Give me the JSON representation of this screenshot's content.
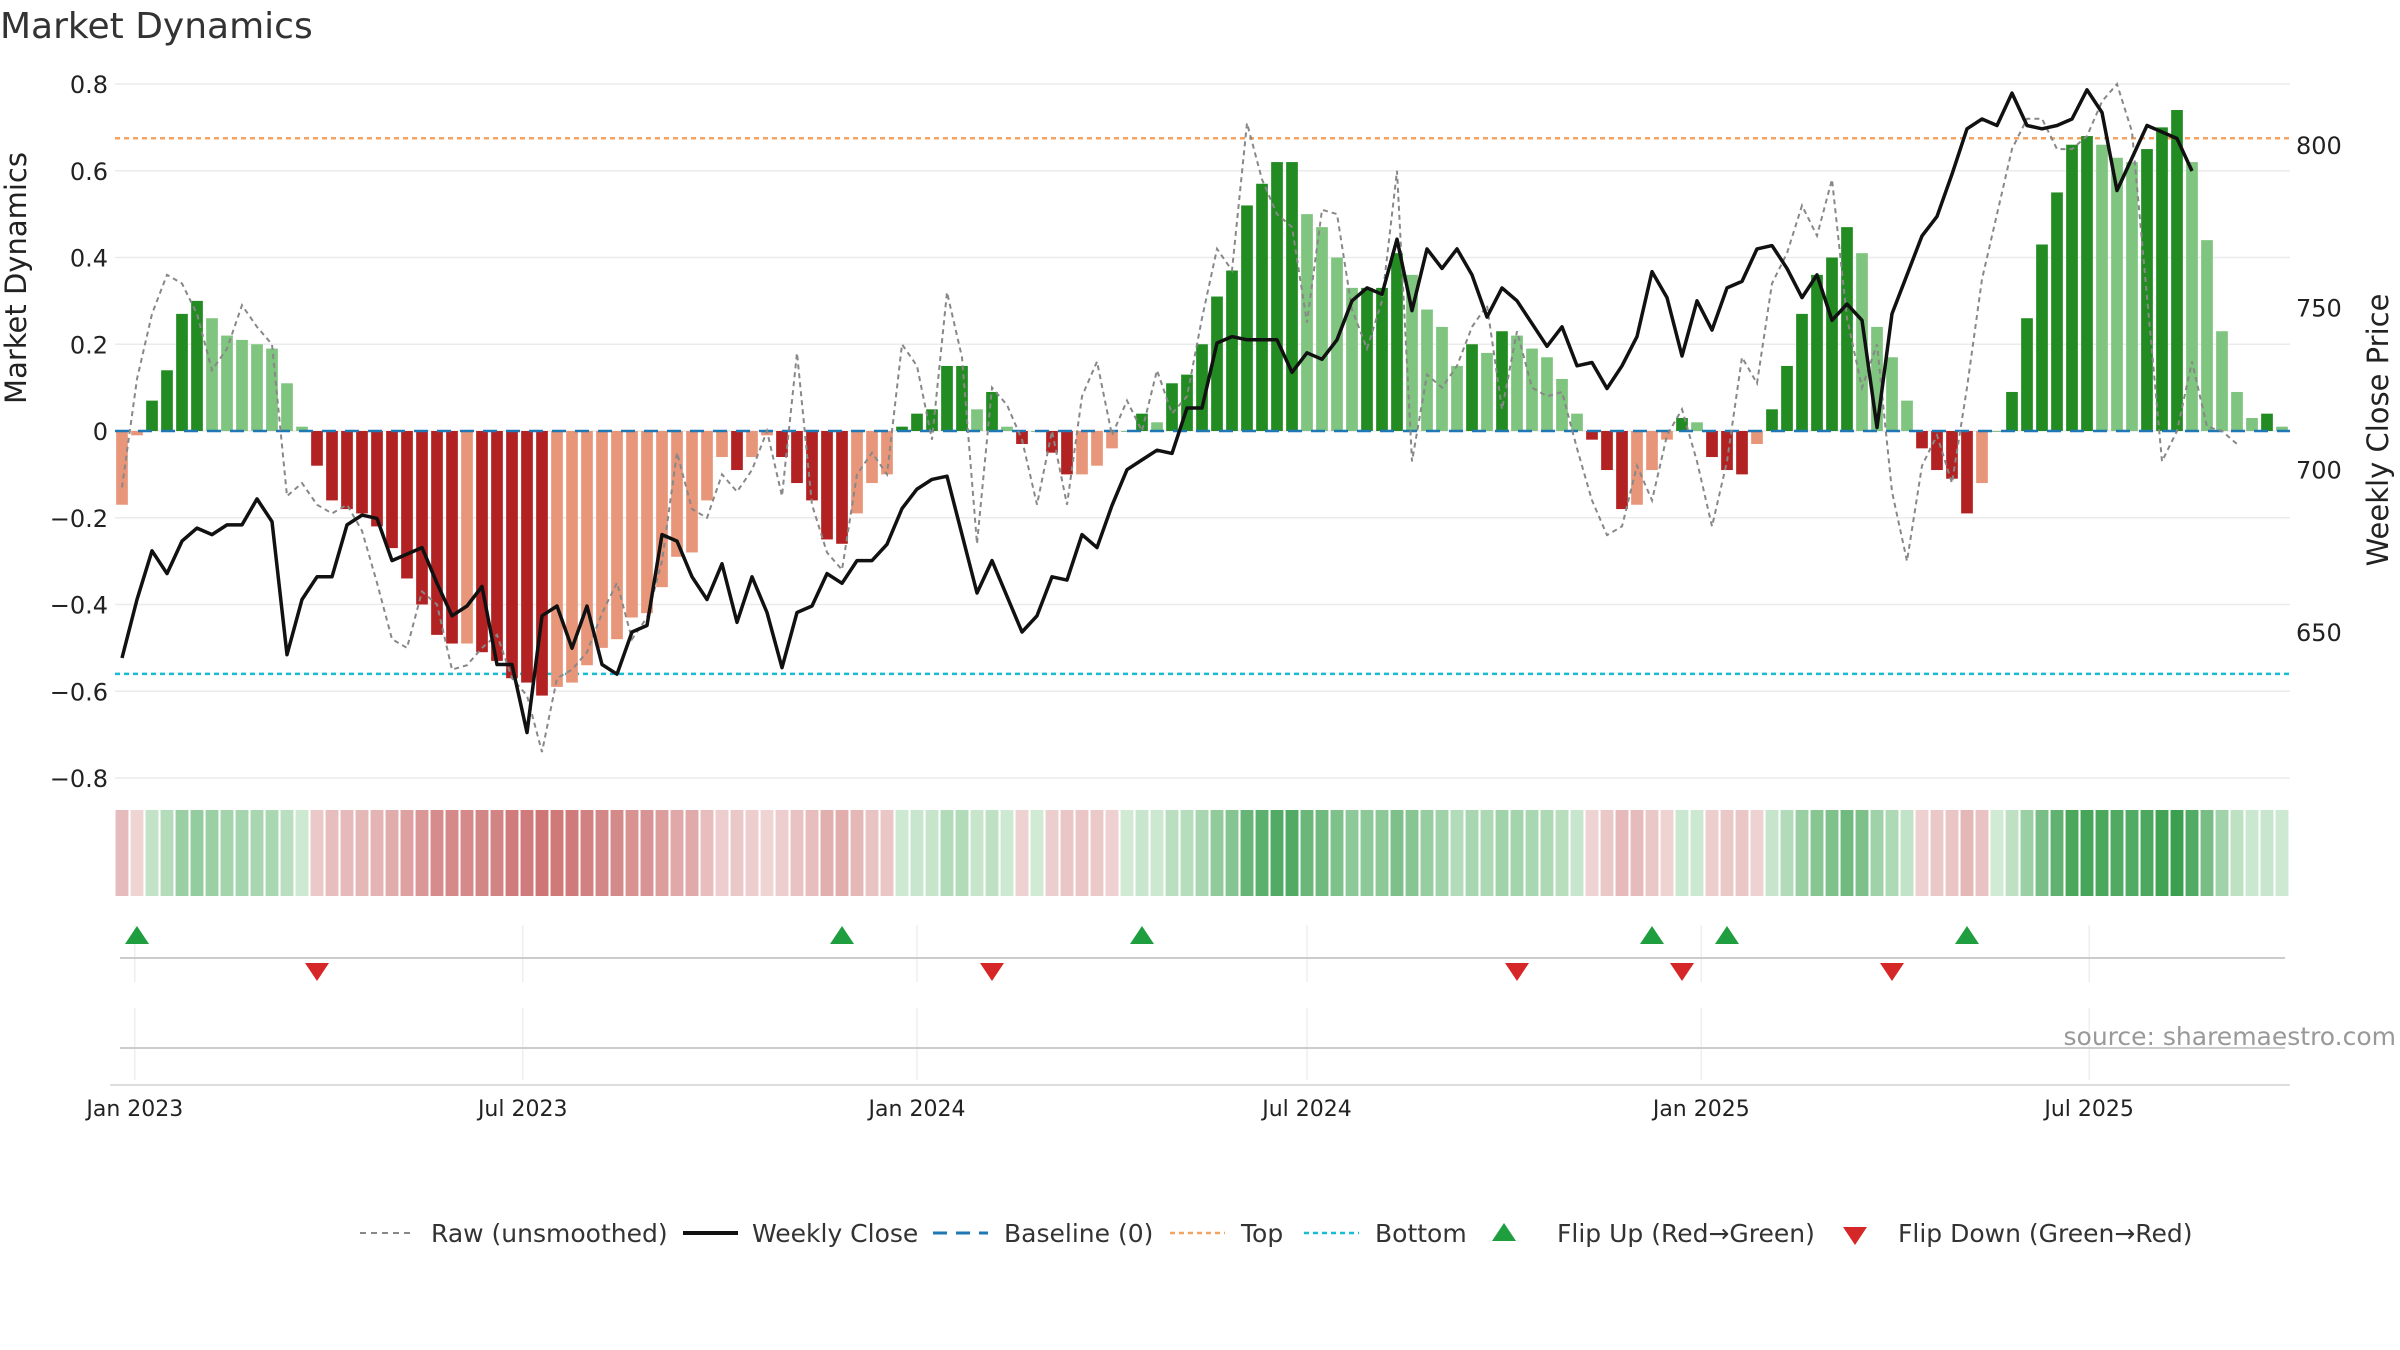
{
  "title": "Market Dynamics",
  "source": "source: sharemaestro.com",
  "colors": {
    "green_strong": "#228b22",
    "green_light": "#7fc47f",
    "red_strong": "#b22222",
    "red_light": "#e8967a",
    "close_line": "#111111",
    "raw_line": "#888888",
    "baseline": "#1f77b4",
    "top": "#f4a460",
    "bottom": "#17becf",
    "flip_up": "#1e9e3e",
    "flip_down": "#d62728"
  },
  "legend": {
    "raw": "Raw (unsmoothed)",
    "close": "Weekly Close",
    "baseline": "Baseline (0)",
    "top": "Top",
    "bottom": "Bottom",
    "flip_up": "Flip Up (Red→Green)",
    "flip_down": "Flip Down (Green→Red)"
  },
  "chart_data": {
    "type": "bar",
    "title": "Market Dynamics",
    "xlabel": "",
    "ylabel": "Market Dynamics",
    "y2label": "Weekly Close Price",
    "ylim": [
      -0.8,
      0.8
    ],
    "y2lim": [
      610,
      820
    ],
    "yticks": [
      -0.8,
      -0.6,
      -0.4,
      -0.2,
      0,
      0.2,
      0.4,
      0.6,
      0.8
    ],
    "y2ticks": [
      650,
      700,
      750,
      800
    ],
    "xticks": [
      "Jan 2023",
      "Jul 2023",
      "Jan 2024",
      "Jul 2024",
      "Jan 2025",
      "Jul 2025"
    ],
    "start_date": "2022-12-26",
    "frequency": "weekly",
    "top_level": 0.675,
    "bottom_level": -0.56,
    "baseline": 0,
    "grid": true,
    "legend_position": "bottom",
    "series": [
      {
        "name": "Market Dynamics",
        "values": [
          -0.17,
          -0.01,
          0.07,
          0.14,
          0.27,
          0.3,
          0.26,
          0.22,
          0.21,
          0.2,
          0.19,
          0.11,
          0.01,
          -0.08,
          -0.16,
          -0.18,
          -0.19,
          -0.22,
          -0.27,
          -0.34,
          -0.4,
          -0.47,
          -0.49,
          -0.49,
          -0.51,
          -0.53,
          -0.57,
          -0.58,
          -0.61,
          -0.59,
          -0.58,
          -0.54,
          -0.5,
          -0.48,
          -0.43,
          -0.42,
          -0.36,
          -0.29,
          -0.28,
          -0.16,
          -0.06,
          -0.09,
          -0.06,
          -0.01,
          -0.06,
          -0.12,
          -0.16,
          -0.25,
          -0.26,
          -0.19,
          -0.12,
          -0.1,
          0.01,
          0.04,
          0.05,
          0.15,
          0.15,
          0.05,
          0.09,
          0.01,
          -0.03,
          0.0,
          -0.05,
          -0.1,
          -0.1,
          -0.08,
          -0.04,
          0.0,
          0.04,
          0.02,
          0.11,
          0.13,
          0.2,
          0.31,
          0.37,
          0.52,
          0.57,
          0.62,
          0.62,
          0.5,
          0.47,
          0.4,
          0.33,
          0.33,
          0.33,
          0.41,
          0.36,
          0.28,
          0.24,
          0.15,
          0.2,
          0.18,
          0.23,
          0.22,
          0.19,
          0.17,
          0.12,
          0.04,
          -0.02,
          -0.09,
          -0.18,
          -0.17,
          -0.09,
          -0.02,
          0.03,
          0.02,
          -0.06,
          -0.09,
          -0.1,
          -0.03,
          0.05,
          0.15,
          0.27,
          0.36,
          0.4,
          0.47,
          0.41,
          0.24,
          0.17,
          0.07,
          -0.04,
          -0.09,
          -0.11,
          -0.19,
          -0.12,
          0.0,
          0.09,
          0.26,
          0.43,
          0.55,
          0.66,
          0.68,
          0.66,
          0.63,
          0.62,
          0.65,
          0.7,
          0.74,
          0.62,
          0.44,
          0.23,
          0.09,
          0.03,
          0.04,
          0.01
        ]
      },
      {
        "name": "Raw (unsmoothed)",
        "values": [
          -0.13,
          0.12,
          0.27,
          0.36,
          0.34,
          0.27,
          0.14,
          0.19,
          0.29,
          0.24,
          0.2,
          -0.15,
          -0.12,
          -0.17,
          -0.19,
          -0.17,
          -0.23,
          -0.35,
          -0.48,
          -0.5,
          -0.37,
          -0.4,
          -0.55,
          -0.54,
          -0.5,
          -0.47,
          -0.57,
          -0.61,
          -0.74,
          -0.57,
          -0.55,
          -0.51,
          -0.42,
          -0.35,
          -0.48,
          -0.43,
          -0.3,
          -0.05,
          -0.18,
          -0.2,
          -0.1,
          -0.14,
          -0.09,
          0.0,
          -0.15,
          0.18,
          -0.17,
          -0.28,
          -0.32,
          -0.1,
          -0.05,
          -0.1,
          0.2,
          0.15,
          -0.02,
          0.32,
          0.17,
          -0.26,
          0.1,
          0.06,
          -0.02,
          -0.17,
          0.0,
          -0.17,
          0.08,
          0.16,
          -0.01,
          0.07,
          0.0,
          0.14,
          0.04,
          0.08,
          0.26,
          0.42,
          0.37,
          0.71,
          0.58,
          0.5,
          0.47,
          0.25,
          0.51,
          0.5,
          0.28,
          0.19,
          0.3,
          0.6,
          -0.07,
          0.13,
          0.1,
          0.15,
          0.24,
          0.29,
          0.05,
          0.23,
          0.1,
          0.08,
          0.09,
          -0.04,
          -0.16,
          -0.24,
          -0.22,
          -0.08,
          -0.16,
          -0.01,
          0.05,
          -0.07,
          -0.22,
          -0.07,
          0.17,
          0.11,
          0.34,
          0.41,
          0.52,
          0.45,
          0.58,
          0.26,
          0.1,
          0.2,
          -0.14,
          -0.3,
          -0.08,
          -0.01,
          -0.12,
          0.1,
          0.35,
          0.5,
          0.65,
          0.72,
          0.72,
          0.65,
          0.65,
          0.68,
          0.76,
          0.8,
          0.69,
          0.31,
          -0.07,
          0.0,
          0.16,
          0.01,
          0.0,
          -0.03
        ]
      },
      {
        "name": "Weekly Close",
        "axis": "right",
        "values": [
          642,
          660,
          675,
          668,
          678,
          682,
          680,
          683,
          683,
          691,
          684,
          643,
          660,
          667,
          667,
          683,
          686,
          685,
          672,
          674,
          676,
          665,
          655,
          658,
          664,
          640,
          640,
          619,
          655,
          658,
          645,
          658,
          640,
          637,
          650,
          652,
          680,
          678,
          667,
          660,
          671,
          653,
          667,
          656,
          639,
          656,
          658,
          668,
          665,
          672,
          672,
          677,
          688,
          694,
          697,
          698,
          680,
          662,
          672,
          661,
          650,
          655,
          667,
          666,
          680,
          676,
          689,
          700,
          703,
          706,
          705,
          719,
          719,
          739,
          741,
          740,
          740,
          740,
          730,
          736,
          734,
          740,
          752,
          756,
          754,
          771,
          749,
          768,
          762,
          768,
          760,
          747,
          756,
          752,
          745,
          738,
          744,
          732,
          733,
          725,
          732,
          741,
          761,
          753,
          735,
          752,
          743,
          756,
          758,
          768,
          769,
          762,
          753,
          760,
          746,
          751,
          746,
          713,
          748,
          760,
          772,
          778,
          791,
          805,
          808,
          806,
          816,
          806,
          805,
          806,
          808,
          817,
          810,
          786,
          796,
          806,
          804,
          802,
          792
        ]
      }
    ],
    "flip_up": [
      "2023-01-02",
      "2023-11-27",
      "2024-04-15",
      "2024-12-09",
      "2025-01-13",
      "2025-05-05"
    ],
    "flip_down": [
      "2023-03-27",
      "2024-02-05",
      "2024-10-07",
      "2024-12-23",
      "2025-03-31"
    ]
  }
}
